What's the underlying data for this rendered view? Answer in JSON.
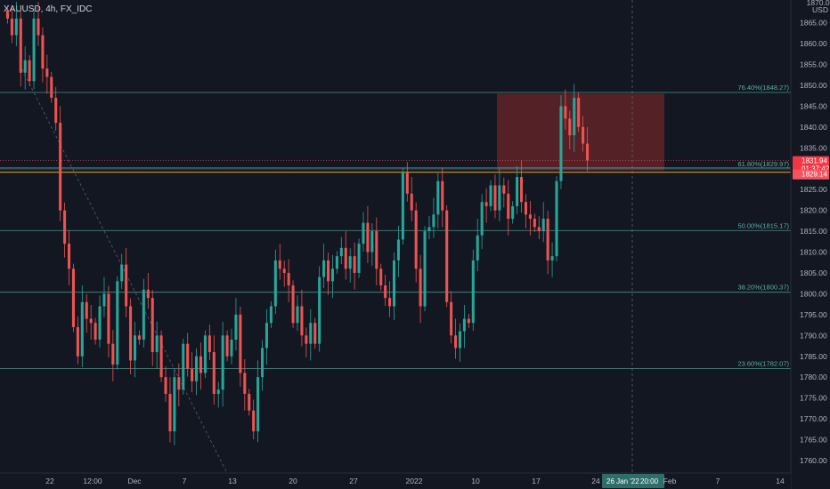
{
  "symbol": "XAUUSD, 4h, FX_IDC",
  "currency": "USD",
  "top_tick": "1870.00",
  "colors": {
    "background": "#131722",
    "up": "#26a69a",
    "down": "#ef5350",
    "fib": "#4e8f8a",
    "orange": "#f5a623",
    "zone": "#8b2a2a"
  },
  "chart_data": {
    "type": "candlestick",
    "ylim": [
      1757,
      1872
    ],
    "y_ticks": [
      "1865.00",
      "1860.00",
      "1855.00",
      "1850.00",
      "1845.00",
      "1840.00",
      "1835.00",
      "1825.00",
      "1820.00",
      "1815.00",
      "1810.00",
      "1805.00",
      "1800.00",
      "1795.00",
      "1790.00",
      "1785.00",
      "1780.00",
      "1775.00",
      "1770.00",
      "1765.00",
      "1760.00"
    ],
    "x_ticks": [
      "22",
      "12:00",
      "Dec",
      "7",
      "13",
      "20",
      "27",
      "2022",
      "10",
      "17",
      "24",
      "7",
      "14"
    ],
    "crosshair_time": "26 Jan '22",
    "crosshair_hour": "20:00",
    "crosshair_after": "Feb",
    "fib_levels": [
      {
        "label": "76.40%(1848.27)",
        "price": 1848.27
      },
      {
        "label": "61.80%(1829.97)",
        "price": 1829.97
      },
      {
        "label": "50.00%(1815.17)",
        "price": 1815.17
      },
      {
        "label": "38.20%(1800.37)",
        "price": 1800.37
      },
      {
        "label": "23.60%(1782.07)",
        "price": 1782.07
      }
    ],
    "orange_line": 1829.14,
    "last_price": "1831.94",
    "countdown": "01:37:42",
    "orange_price": "1829.14",
    "resistance_zone": {
      "price_high": 1848.0,
      "price_low": 1829.6
    },
    "price_path": [
      1868,
      1866,
      1862,
      1866,
      1853,
      1856,
      1851,
      1866,
      1862,
      1854,
      1852,
      1847,
      1841,
      1820,
      1812,
      1806,
      1792,
      1785,
      1798,
      1794,
      1793,
      1789,
      1797,
      1800,
      1788,
      1783,
      1803,
      1807,
      1797,
      1784,
      1790,
      1789,
      1801,
      1799,
      1786,
      1790,
      1780,
      1776,
      1767,
      1780,
      1777,
      1788,
      1782,
      1779,
      1785,
      1781,
      1790,
      1786,
      1776,
      1777,
      1790,
      1785,
      1789,
      1795,
      1781,
      1776,
      1772,
      1767,
      1780,
      1787,
      1793,
      1797,
      1808,
      1806,
      1805,
      1802,
      1793,
      1797,
      1790,
      1788,
      1793,
      1788,
      1804,
      1808,
      1803,
      1806,
      1809,
      1811,
      1806,
      1809,
      1805,
      1812,
      1817,
      1810,
      1815,
      1806,
      1802,
      1799,
      1797,
      1808,
      1813,
      1829,
      1824,
      1820,
      1806,
      1797,
      1815,
      1816,
      1819,
      1827,
      1820,
      1798,
      1790,
      1787,
      1791,
      1794,
      1793,
      1808,
      1814,
      1822,
      1821,
      1826,
      1820,
      1826,
      1824,
      1818,
      1821,
      1828,
      1822,
      1819,
      1818,
      1816,
      1815,
      1818,
      1808,
      1809,
      1827,
      1845,
      1842,
      1838,
      1847,
      1840,
      1836,
      1832
    ],
    "annotations": [
      "1870.00",
      "USD"
    ]
  }
}
